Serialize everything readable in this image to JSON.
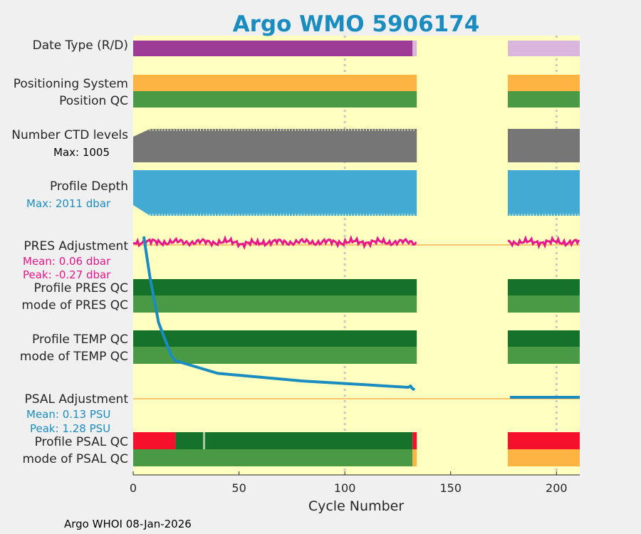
{
  "chart_data": {
    "type": "timeline",
    "title": "Argo WMO 5906174",
    "xlabel": "Cycle Number",
    "xlim": [
      0,
      211
    ],
    "xticks": [
      0,
      50,
      100,
      150,
      200
    ],
    "tick_labels": [
      "0",
      "50",
      "100",
      "150",
      "200"
    ],
    "data_gap": [
      134,
      177
    ],
    "rows": {
      "date_type": {
        "label": "Date Type (R/D)",
        "segments": [
          {
            "start": 0,
            "end": 132,
            "color": "#9c3c96"
          },
          {
            "start": 132,
            "end": 134,
            "color": "#dab6dc"
          },
          {
            "start": 177,
            "end": 211,
            "color": "#dab6dc"
          }
        ]
      },
      "positioning_system": {
        "label": "Positioning System",
        "segments": [
          {
            "start": 0,
            "end": 134,
            "color": "#fdb443"
          },
          {
            "start": 177,
            "end": 211,
            "color": "#fdb443"
          }
        ]
      },
      "position_qc": {
        "label": "Position QC",
        "segments": [
          {
            "start": 0,
            "end": 134,
            "color": "#4a9a45"
          },
          {
            "start": 177,
            "end": 211,
            "color": "#4a9a45"
          }
        ]
      },
      "ctd_levels": {
        "label": "Number CTD levels",
        "max_label": "Max: 1005",
        "max_value": 1005,
        "segments": [
          {
            "start": 0,
            "end": 134,
            "color": "#767676"
          },
          {
            "start": 177,
            "end": 211,
            "color": "#767676"
          }
        ]
      },
      "profile_depth": {
        "label": "Profile Depth",
        "max_label": "Max: 2011 dbar",
        "max_value": 2011,
        "segments": [
          {
            "start": 0,
            "end": 134,
            "color": "#42aad3"
          },
          {
            "start": 177,
            "end": 211,
            "color": "#42aad3"
          }
        ]
      },
      "pres_adjustment": {
        "label": "PRES Adjustment",
        "mean_label": "Mean: 0.06 dbar",
        "peak_label": "Peak: -0.27 dbar",
        "segments": [
          {
            "start": 0,
            "end": 134
          },
          {
            "start": 177,
            "end": 211
          }
        ],
        "color": "#e5178a"
      },
      "profile_pres_qc": {
        "label": "Profile PRES QC",
        "segments": [
          {
            "start": 0,
            "end": 134,
            "color": "#15722b"
          },
          {
            "start": 177,
            "end": 211,
            "color": "#15722b"
          }
        ]
      },
      "mode_pres_qc": {
        "label": "mode of PRES QC",
        "segments": [
          {
            "start": 0,
            "end": 134,
            "color": "#4a9a45"
          },
          {
            "start": 177,
            "end": 211,
            "color": "#4a9a45"
          }
        ]
      },
      "profile_temp_qc": {
        "label": "Profile TEMP QC",
        "segments": [
          {
            "start": 0,
            "end": 134,
            "color": "#15722b"
          },
          {
            "start": 177,
            "end": 211,
            "color": "#15722b"
          }
        ]
      },
      "mode_temp_qc": {
        "label": "mode of TEMP QC",
        "segments": [
          {
            "start": 0,
            "end": 134,
            "color": "#4a9a45"
          },
          {
            "start": 177,
            "end": 211,
            "color": "#4a9a45"
          }
        ]
      },
      "psal_adjustment": {
        "label": "PSAL Adjustment",
        "mean_label": "Mean: 0.13 PSU",
        "peak_label": "Peak: 1.28 PSU",
        "color": "#1a8cbf",
        "curve": [
          [
            5,
            1.28
          ],
          [
            8,
            0.95
          ],
          [
            12,
            0.6
          ],
          [
            18,
            0.34
          ],
          [
            20,
            0.3
          ],
          [
            30,
            0.25
          ],
          [
            40,
            0.2
          ],
          [
            60,
            0.17
          ],
          [
            80,
            0.14
          ],
          [
            100,
            0.12
          ],
          [
            120,
            0.1
          ],
          [
            130,
            0.09
          ],
          [
            131,
            0.1
          ],
          [
            132,
            0.08
          ],
          [
            133,
            0.07
          ]
        ],
        "tail": [
          [
            178,
            0.0
          ],
          [
            211,
            0.0
          ]
        ]
      },
      "profile_psal_qc": {
        "label": "Profile PSAL QC",
        "segments": [
          {
            "start": 0,
            "end": 20,
            "color": "#f5112b"
          },
          {
            "start": 20,
            "end": 33,
            "color": "#15722b"
          },
          {
            "start": 33,
            "end": 34,
            "color": "#a9c79e"
          },
          {
            "start": 34,
            "end": 132,
            "color": "#15722b"
          },
          {
            "start": 132,
            "end": 134,
            "color": "#f5112b"
          },
          {
            "start": 177,
            "end": 211,
            "color": "#f5112b"
          }
        ]
      },
      "mode_psal_qc": {
        "label": "mode of PSAL QC",
        "segments": [
          {
            "start": 0,
            "end": 132,
            "color": "#4a9a45"
          },
          {
            "start": 132,
            "end": 134,
            "color": "#fdb443"
          },
          {
            "start": 177,
            "end": 211,
            "color": "#fdb443"
          }
        ]
      }
    }
  },
  "colors": {
    "plot_background": "#ffffc0",
    "baseline": "#f5b550",
    "grid": "#c8c8c8",
    "figure_background": "#f0f0f0"
  },
  "footer": "Argo WHOI 08-Jan-2026"
}
